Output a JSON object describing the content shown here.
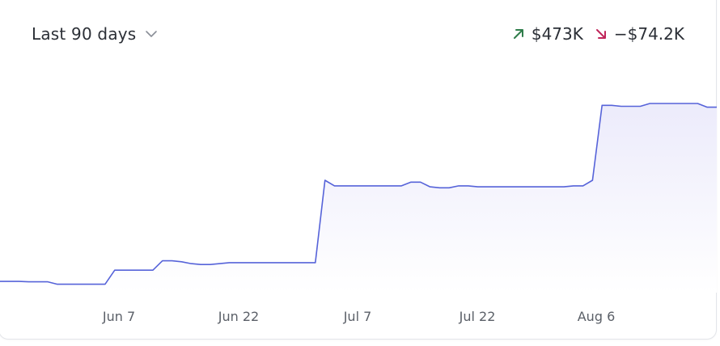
{
  "header": {
    "range_label": "Last 90 days",
    "up_value": "$473K",
    "down_value": "−$74.2K"
  },
  "colors": {
    "line": "#5663d9",
    "area_top": "#ecebfb",
    "area_bottom": "#ffffff",
    "up": "#2f7d4b",
    "down": "#c0255a"
  },
  "icons": {
    "range_dropdown": "chevron-down-icon",
    "up": "arrow-up-right-icon",
    "down": "arrow-down-right-icon"
  },
  "chart_data": {
    "type": "area",
    "x_ticks": [
      "Jun 7",
      "Jun 22",
      "Jul 7",
      "Jul 22",
      "Aug 6"
    ],
    "series": [
      {
        "values": [
          0.06,
          0.06,
          0.06,
          0.058,
          0.058,
          0.058,
          0.045,
          0.045,
          0.045,
          0.045,
          0.045,
          0.045,
          0.12,
          0.12,
          0.12,
          0.12,
          0.12,
          0.17,
          0.17,
          0.165,
          0.155,
          0.15,
          0.15,
          0.155,
          0.16,
          0.16,
          0.16,
          0.16,
          0.16,
          0.16,
          0.16,
          0.16,
          0.16,
          0.16,
          0.6,
          0.57,
          0.57,
          0.57,
          0.57,
          0.57,
          0.57,
          0.57,
          0.57,
          0.59,
          0.59,
          0.565,
          0.56,
          0.56,
          0.57,
          0.57,
          0.565,
          0.565,
          0.565,
          0.565,
          0.565,
          0.565,
          0.565,
          0.565,
          0.565,
          0.565,
          0.57,
          0.57,
          0.6,
          1.0,
          1.0,
          0.995,
          0.995,
          0.995,
          1.01,
          1.01,
          1.01,
          1.01,
          1.01,
          1.01,
          0.99,
          0.99
        ]
      }
    ]
  }
}
